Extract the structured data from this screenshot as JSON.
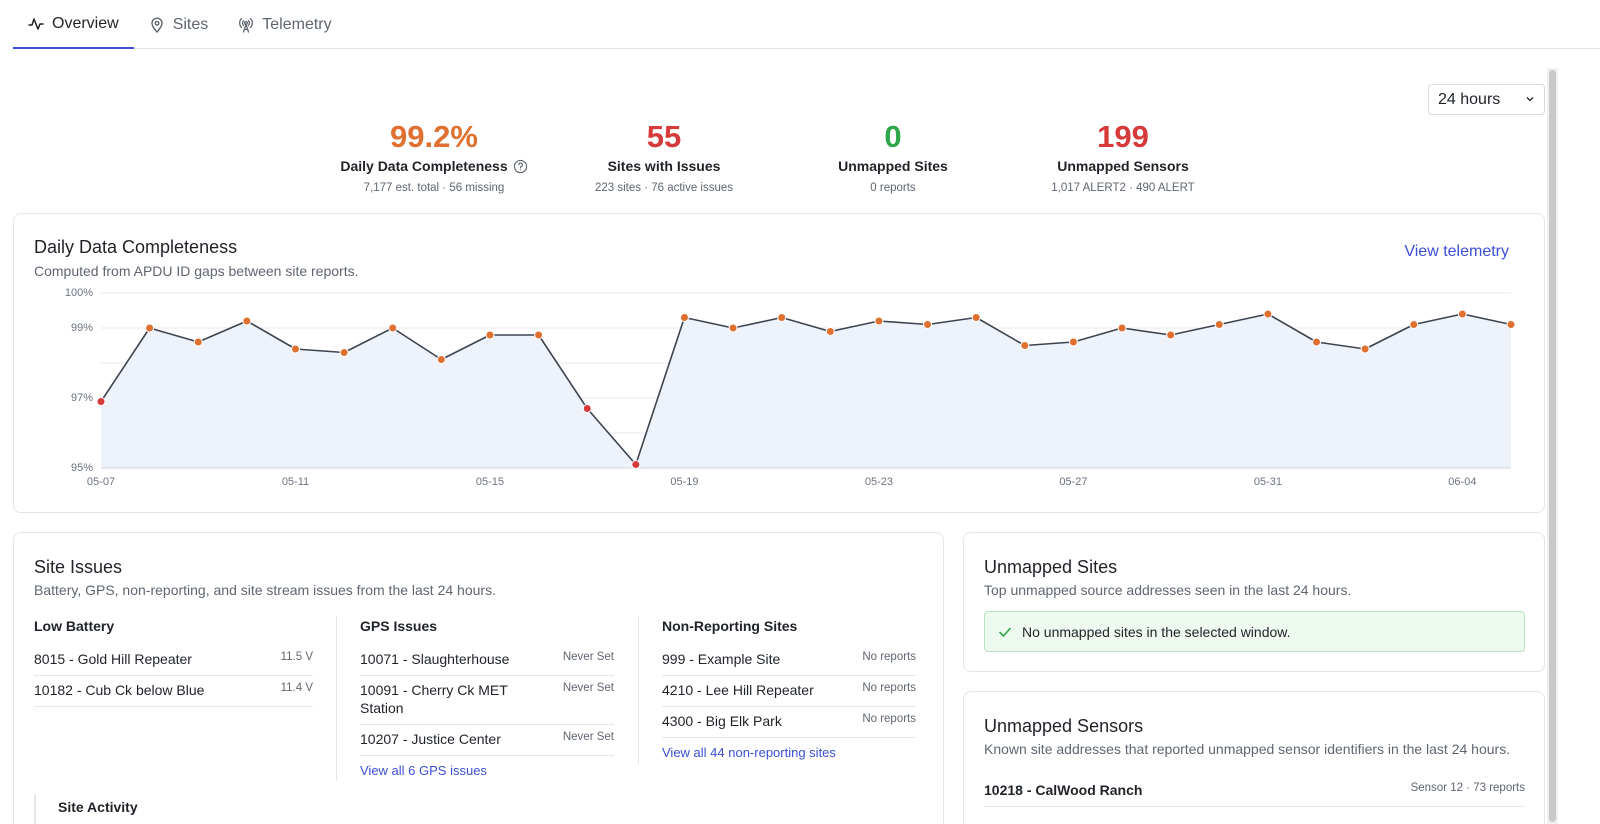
{
  "tabs": [
    {
      "label": "Overview",
      "icon": "activity-icon",
      "active": true
    },
    {
      "label": "Sites",
      "icon": "map-pin-icon"
    },
    {
      "label": "Telemetry",
      "icon": "radio-tower-icon"
    }
  ],
  "range": {
    "selected": "24 hours"
  },
  "kpis": [
    {
      "value": "99.2%",
      "label": "Daily Data Completeness",
      "sub": "7,177 est. total · 56 missing",
      "color": "#e07030"
    },
    {
      "value": "55",
      "label": "Sites with Issues",
      "sub": "223 sites · 76 active issues",
      "color": "#d63a3a"
    },
    {
      "value": "0",
      "label": "Unmapped Sites",
      "sub": "0 reports",
      "color": "#2ea64a"
    },
    {
      "value": "199",
      "label": "Unmapped Sensors",
      "sub": "1,017 ALERT2 · 490 ALERT",
      "color": "#d63a3a"
    }
  ],
  "completeness_card": {
    "title": "Daily Data Completeness",
    "desc": "Computed from APDU ID gaps between site reports.",
    "link": "View telemetry"
  },
  "chart_data": {
    "type": "line",
    "title": "",
    "xlabel": "",
    "ylabel": "",
    "ylim": [
      95,
      100
    ],
    "y_ticks": [
      "100%",
      "99%",
      "97%",
      "95%"
    ],
    "x_ticks": [
      "05-07",
      "05-11",
      "05-15",
      "05-19",
      "05-23",
      "05-27",
      "05-31",
      "06-04"
    ],
    "x": [
      "05-07",
      "05-08",
      "05-09",
      "05-10",
      "05-11",
      "05-12",
      "05-13",
      "05-14",
      "05-15",
      "05-16",
      "05-17",
      "05-18",
      "05-19",
      "05-20",
      "05-21",
      "05-22",
      "05-23",
      "05-24",
      "05-25",
      "05-26",
      "05-27",
      "05-28",
      "05-29",
      "05-30",
      "05-31",
      "06-01",
      "06-02",
      "06-03",
      "06-04",
      "06-05"
    ],
    "values": [
      96.9,
      99.0,
      98.6,
      99.2,
      98.4,
      98.3,
      99.0,
      98.1,
      98.8,
      98.8,
      96.7,
      95.1,
      99.3,
      99.0,
      99.3,
      98.9,
      99.2,
      99.1,
      99.3,
      98.5,
      98.6,
      99.0,
      98.8,
      99.1,
      99.4,
      98.6,
      98.4,
      99.1,
      99.4,
      99.1
    ],
    "grid": true,
    "colors": {
      "line": "#3d4450",
      "fill": "#eef3fb",
      "ok_point": "#e07030",
      "bad_point": "#d63a3a"
    }
  },
  "site_issues": {
    "title": "Site Issues",
    "desc": "Battery, GPS, non-reporting, and site stream issues from the last 24 hours.",
    "low_battery": {
      "title": "Low Battery",
      "rows": [
        {
          "name": "8015 - Gold Hill Repeater",
          "meta": "11.5 V"
        },
        {
          "name": "10182 - Cub Ck below Blue",
          "meta": "11.4 V"
        }
      ]
    },
    "gps": {
      "title": "GPS Issues",
      "rows": [
        {
          "name": "10071 - Slaughterhouse",
          "meta": "Never Set"
        },
        {
          "name": "10091 - Cherry Ck MET Station",
          "meta": "Never Set"
        },
        {
          "name": "10207 - Justice Center",
          "meta": "Never Set"
        }
      ],
      "link": "View all 6 GPS issues"
    },
    "non_reporting": {
      "title": "Non-Reporting Sites",
      "rows": [
        {
          "name": "999 - Example Site",
          "meta": "No reports"
        },
        {
          "name": "4210 - Lee Hill Repeater",
          "meta": "No reports"
        },
        {
          "name": "4300 - Big Elk Park",
          "meta": "No reports"
        }
      ],
      "link": "View all 44 non-reporting sites"
    },
    "site_activity_title": "Site Activity"
  },
  "unmapped_sites": {
    "title": "Unmapped Sites",
    "desc": "Top unmapped source addresses seen in the last 24 hours.",
    "empty": "No unmapped sites in the selected window."
  },
  "unmapped_sensors": {
    "title": "Unmapped Sensors",
    "desc": "Known site addresses that reported unmapped sensor identifiers in the last 24 hours.",
    "rows": [
      {
        "name": "10218 - CalWood Ranch",
        "meta": "Sensor 12 · 73 reports"
      }
    ]
  }
}
